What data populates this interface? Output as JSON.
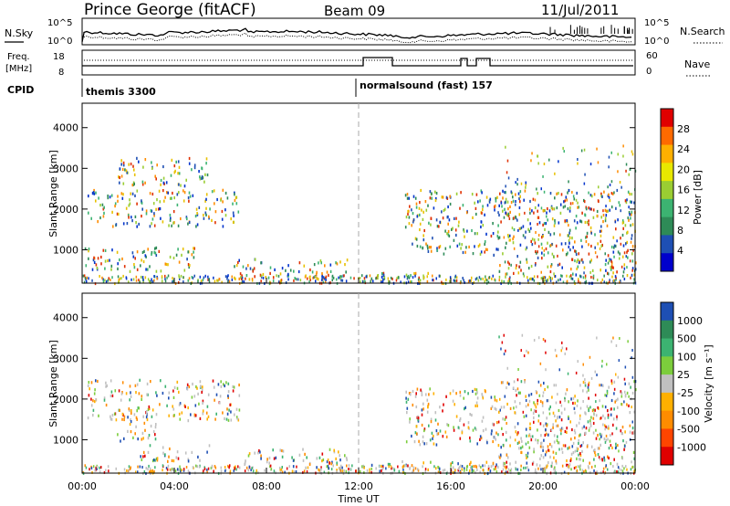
{
  "header": {
    "station": "Prince George (fitACF)",
    "beam": "Beam 09",
    "date": "11/Jul/2011"
  },
  "noise_panel": {
    "left_label": "N.Sky",
    "right_label": "N.Search",
    "left_ticks": [
      "10^5",
      "10^0"
    ],
    "right_ticks": [
      "10^5",
      "10^0"
    ]
  },
  "freq_panel": {
    "left_label_line1": "Freq.",
    "left_label_line2": "[MHz]",
    "right_label": "Nave",
    "left_ticks": [
      "18",
      "8"
    ],
    "right_ticks": [
      "60",
      "0"
    ]
  },
  "cpid": {
    "label": "CPID",
    "segments": [
      {
        "label": "themis 3300",
        "start_hour": 0,
        "end_hour": 12
      },
      {
        "label": "normalsound (fast) 157",
        "start_hour": 12,
        "end_hour": 24
      }
    ]
  },
  "colorbars": {
    "power": {
      "label": "Power [dB]",
      "ticks": [
        "28",
        "24",
        "20",
        "16",
        "12",
        "8",
        "4"
      ],
      "colors": [
        "#e00000",
        "#ff6a00",
        "#ffb000",
        "#e8e800",
        "#9acd32",
        "#3cb371",
        "#2e8b57",
        "#1e4fb4",
        "#0000cc"
      ]
    },
    "velocity": {
      "label": "Velocity [m s⁻¹]",
      "ticks": [
        "1000",
        "500",
        "100",
        "25",
        "-25",
        "-100",
        "-500",
        "-1000"
      ],
      "colors": [
        "#1e4fb4",
        "#2e8b57",
        "#3cb371",
        "#7ccd3c",
        "#c0c0c0",
        "#ffb000",
        "#ff8c00",
        "#ff4500",
        "#e00000"
      ]
    }
  },
  "chart_data": [
    {
      "type": "heatmap",
      "title": "Power",
      "ylabel": "Slant Range [km]",
      "xlabel": "Time UT",
      "xlim_hours": [
        0,
        24
      ],
      "ylim_km": [
        180,
        4600
      ],
      "y_ticks": [
        1000,
        2000,
        3000,
        4000
      ],
      "x_tick_labels": [
        "00:00",
        "04:00",
        "08:00",
        "12:00",
        "16:00",
        "20:00",
        "00:00"
      ],
      "colorbar": "power",
      "regions": [
        {
          "t0": 0.2,
          "t1": 6.8,
          "r0": 1600,
          "r1": 2500,
          "level": "12-24 dB"
        },
        {
          "t0": 1.5,
          "t1": 5.5,
          "r0": 2600,
          "r1": 3300,
          "level": "8-20 dB"
        },
        {
          "t0": 0.1,
          "t1": 5.0,
          "r0": 500,
          "r1": 1100,
          "level": "12-24 dB"
        },
        {
          "t0": 6.5,
          "t1": 11.5,
          "r0": 300,
          "r1": 800,
          "level": "12-28 dB"
        },
        {
          "t0": 12.0,
          "t1": 15.0,
          "r0": 250,
          "r1": 500,
          "level": "12-28 dB"
        },
        {
          "t0": 14.0,
          "t1": 18.0,
          "r0": 900,
          "r1": 2500,
          "level": "4-16 dB"
        },
        {
          "t0": 18.0,
          "t1": 24.0,
          "r0": 400,
          "r1": 2500,
          "level": "4-20 dB"
        }
      ]
    },
    {
      "type": "heatmap",
      "title": "Velocity",
      "ylabel": "Slant Range [km]",
      "xlabel": "Time UT",
      "xlim_hours": [
        0,
        24
      ],
      "ylim_km": [
        180,
        4600
      ],
      "y_ticks": [
        1000,
        2000,
        3000,
        4000
      ],
      "x_tick_labels": [
        "00:00",
        "04:00",
        "08:00",
        "12:00",
        "16:00",
        "20:00",
        "00:00"
      ],
      "colorbar": "velocity",
      "regions": [
        {
          "t0": 0.2,
          "t1": 6.8,
          "r0": 1500,
          "r1": 2500,
          "level": "-25 to 25 m/s"
        },
        {
          "t0": 1.5,
          "t1": 3.2,
          "r0": 1000,
          "r1": 1700,
          "level": "-500 to -100 m/s"
        },
        {
          "t0": 2.5,
          "t1": 5.5,
          "r0": 500,
          "r1": 900,
          "level": "-500 to -100 m/s"
        },
        {
          "t0": 7.0,
          "t1": 11.5,
          "r0": 300,
          "r1": 800,
          "level": "-25 to 100 m/s"
        },
        {
          "t0": 11.5,
          "t1": 18.5,
          "r0": 250,
          "r1": 500,
          "level": "25 to 100 m/s"
        },
        {
          "t0": 14.0,
          "t1": 18.0,
          "r0": 900,
          "r1": 2300,
          "level": "-100 to 25 m/s"
        },
        {
          "t0": 18.0,
          "t1": 24.0,
          "r0": 400,
          "r1": 2500,
          "level": "-25 to 25 m/s"
        }
      ]
    }
  ]
}
